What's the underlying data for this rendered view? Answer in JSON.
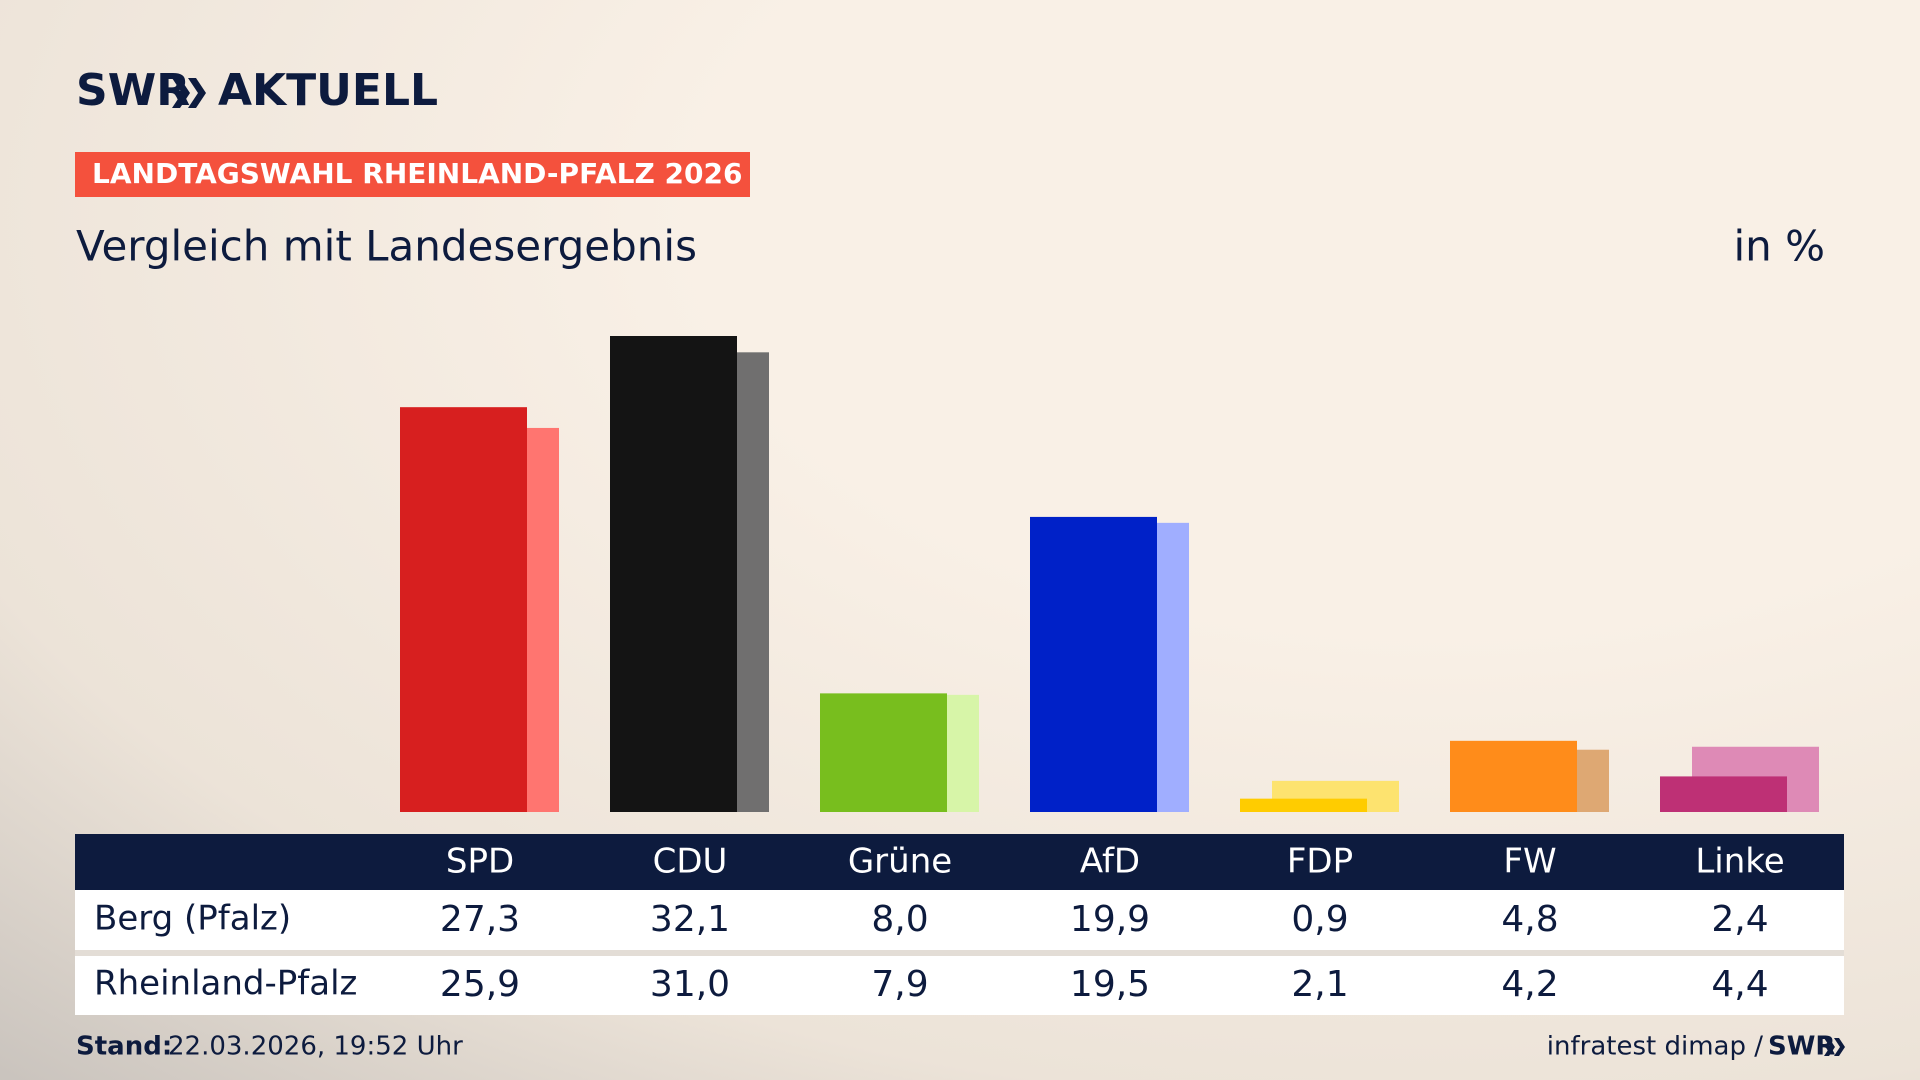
{
  "header": {
    "logo": "SWR",
    "logo_suffix": "AKTUELL",
    "banner": "LANDTAGSWAHL RHEINLAND-PFALZ 2026"
  },
  "chart_data": {
    "type": "bar",
    "title": "Vergleich mit Landesergebnis",
    "unit": "in %",
    "categories": [
      "SPD",
      "CDU",
      "Grüne",
      "AfD",
      "FDP",
      "FW",
      "Linke"
    ],
    "series": [
      {
        "name": "Berg (Pfalz)",
        "colors": [
          "#d71f1f",
          "#141414",
          "#78be1e",
          "#0021c8",
          "#ffcc00",
          "#ff8c1a",
          "#be3075"
        ],
        "values": [
          27.3,
          32.1,
          8.0,
          19.9,
          0.9,
          4.8,
          2.4
        ],
        "value_labels": [
          "27,3",
          "32,1",
          "8,0",
          "19,9",
          "0,9",
          "4,8",
          "2,4"
        ]
      },
      {
        "name": "Rheinland-Pfalz",
        "colors": [
          "#ff7570",
          "#706f6f",
          "#d7f5a8",
          "#a0aeff",
          "#fde36f",
          "#dea873",
          "#de8ab6"
        ],
        "values": [
          25.9,
          31.0,
          7.9,
          19.5,
          2.1,
          4.2,
          4.4
        ],
        "value_labels": [
          "25,9",
          "31,0",
          "7,9",
          "19,5",
          "2,1",
          "4,2",
          "4,4"
        ]
      }
    ]
  },
  "footer": {
    "stand_label": "Stand:",
    "stand": "22.03.2026, 19:52 Uhr",
    "source": "infratest dimap /",
    "brand": "SWR"
  }
}
